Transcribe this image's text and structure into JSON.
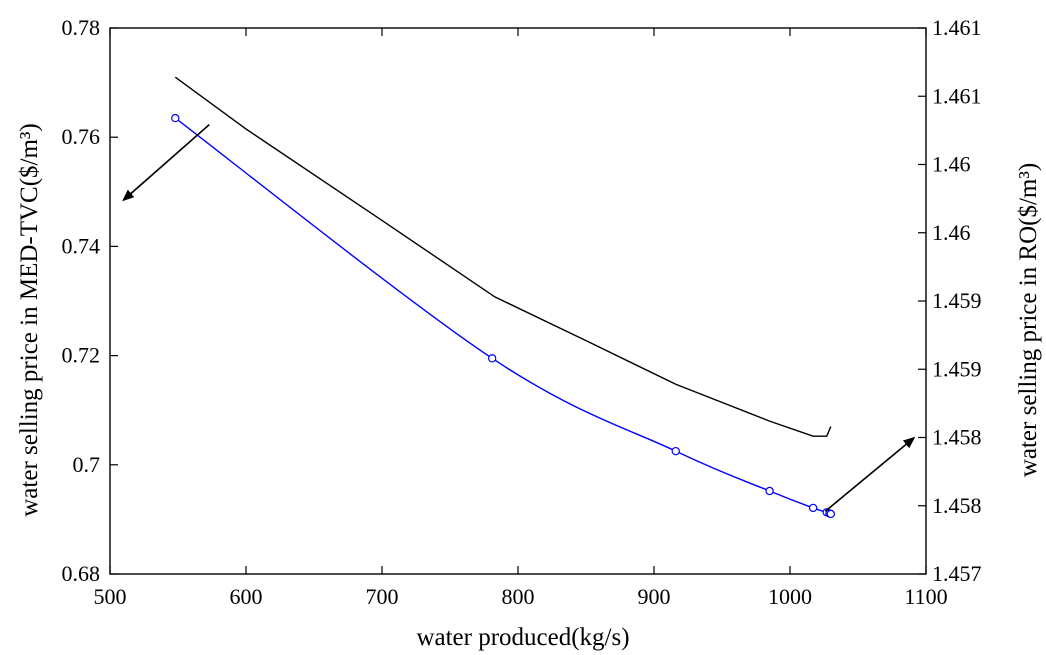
{
  "chart_data": {
    "type": "line",
    "title": "",
    "xlabel": "water produced(kg/s)",
    "ylabel_left": "water selling price in MED-TVC($/m³)",
    "ylabel_right": "water selling price in RO($/m³)",
    "xlim": [
      500,
      1100
    ],
    "ylim_left": [
      0.68,
      0.78
    ],
    "ylim_right": [
      1.457,
      1.461
    ],
    "x_ticks": [
      500,
      600,
      700,
      800,
      900,
      1000,
      1100
    ],
    "y_left_ticks": [
      0.68,
      0.7,
      0.72,
      0.74,
      0.76,
      0.78
    ],
    "y_left_tick_labels": [
      "0.68",
      "0.7",
      "0.72",
      "0.74",
      "0.76",
      "0.78"
    ],
    "y_right_ticks": [
      1.457,
      1.4575,
      1.458,
      1.4585,
      1.459,
      1.4595,
      1.46,
      1.4605,
      1.461
    ],
    "y_right_tick_labels": [
      "1.457",
      "1.458",
      "1.458",
      "1.459",
      "1.459",
      "1.46",
      "1.46",
      "1.461",
      "1.461"
    ],
    "grid": false,
    "legend": "none",
    "series": [
      {
        "axis": "left",
        "color": "#0000ff",
        "marker": "circle-open",
        "curve": "smooth",
        "x": [
          548,
          781,
          916,
          985,
          1017,
          1027,
          1029,
          1030
        ],
        "y": [
          0.7635,
          0.7195,
          0.7025,
          0.6952,
          0.6921,
          0.6913,
          0.6911,
          0.691
        ]
      },
      {
        "axis": "right",
        "color": "#000000",
        "marker": "none",
        "curve": "linear",
        "x": [
          548,
          600,
          700,
          783,
          850,
          916,
          985,
          1017,
          1027,
          1030
        ],
        "y": [
          1.46064,
          1.46026,
          1.45959,
          1.45903,
          1.45871,
          1.45839,
          1.45812,
          1.45801,
          1.45801,
          1.45808
        ]
      }
    ],
    "annotations": [
      {
        "type": "arrow",
        "from": [
          573,
          0.7623
        ],
        "to": [
          510,
          0.7485
        ],
        "axis": "left"
      },
      {
        "type": "arrow",
        "from": [
          1026,
          0.6915
        ],
        "to": [
          1091,
          0.7049
        ],
        "axis": "left"
      }
    ]
  }
}
